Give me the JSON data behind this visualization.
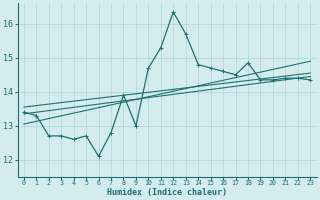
{
  "xlabel": "Humidex (Indice chaleur)",
  "xlim": [
    -0.5,
    23.5
  ],
  "ylim": [
    11.5,
    16.6
  ],
  "yticks": [
    12,
    13,
    14,
    15,
    16
  ],
  "xticks": [
    0,
    1,
    2,
    3,
    4,
    5,
    6,
    7,
    8,
    9,
    10,
    11,
    12,
    13,
    14,
    15,
    16,
    17,
    18,
    19,
    20,
    21,
    22,
    23
  ],
  "background_color": "#d4ecee",
  "grid_color": "#b0d4d8",
  "line_color": "#1e7070",
  "main_series": [
    13.4,
    13.3,
    12.7,
    12.7,
    12.6,
    12.7,
    12.1,
    12.8,
    13.9,
    13.0,
    14.7,
    15.3,
    16.35,
    15.7,
    14.8,
    14.7,
    14.6,
    14.5,
    14.85,
    14.35,
    14.35,
    14.4,
    14.4,
    14.35
  ],
  "reg_line1_start": 13.55,
  "reg_line1_end": 14.55,
  "reg_line2_start": 13.35,
  "reg_line2_end": 14.45,
  "reg_line3_start": 13.05,
  "reg_line3_end": 14.9
}
